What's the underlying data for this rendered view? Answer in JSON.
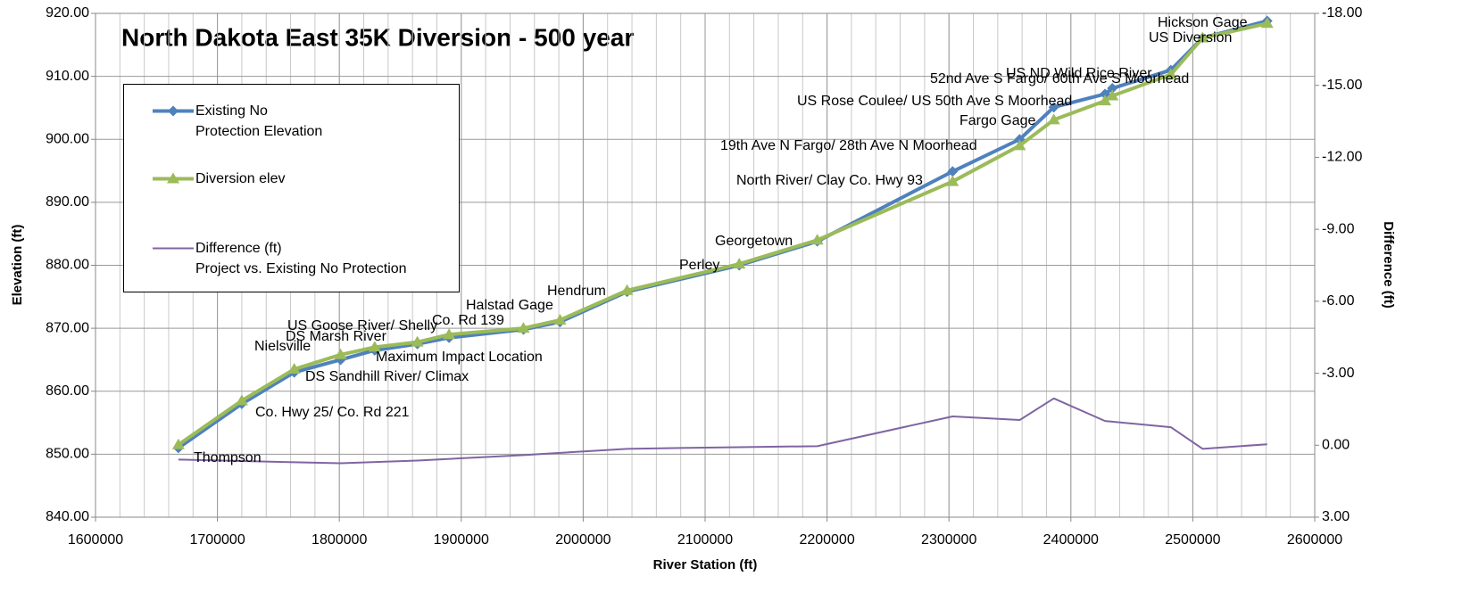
{
  "chart_data": {
    "type": "line",
    "title": "North Dakota East 35K Diversion  - 500 year",
    "x_label": "River Station (ft)",
    "y_label": "Elevation (ft)",
    "y2_label": "Difference (ft)",
    "x": [
      1668000,
      1720000,
      1763000,
      1801000,
      1829000,
      1864000,
      1890000,
      1951000,
      1981000,
      2036000,
      2128000,
      2192000,
      2303000,
      2358000,
      2386000,
      2428000,
      2434000,
      2482000,
      2508000,
      2561000
    ],
    "series": [
      {
        "name": "Existing No\nProtection Elevation",
        "color": "#4f81bd",
        "marker": "diamond",
        "values": [
          851,
          858,
          863,
          865,
          866.5,
          867.5,
          868.5,
          869.8,
          871,
          875.8,
          880,
          883.8,
          894.9,
          900,
          905.1,
          907.2,
          908.1,
          911,
          916.1,
          918.8
        ]
      },
      {
        "name": "Diversion elev",
        "color": "#9bbb59",
        "marker": "triangle",
        "values": [
          851.5,
          858.5,
          863.5,
          865.8,
          867,
          867.8,
          869,
          870,
          871.3,
          876,
          880.2,
          884,
          893.3,
          899,
          903.1,
          906.1,
          906.9,
          910.3,
          916.1,
          918.4
        ]
      },
      {
        "name": "Difference (ft)\n Project vs. Existing No Protection",
        "color": "#8064a2",
        "marker": "none",
        "axis": "y2",
        "x": [
          1668000,
          1763000,
          1801000,
          1864000,
          1951000,
          2036000,
          2128000,
          2192000,
          2303000,
          2358000,
          2386000,
          2428000,
          2482000,
          2508000,
          2561000
        ],
        "values": [
          0.6,
          0.71,
          0.75,
          0.64,
          0.41,
          0.15,
          0.08,
          0.04,
          -1.2,
          -1.05,
          -1.95,
          -1.01,
          -0.75,
          0.15,
          -0.04
        ]
      }
    ],
    "annotations": [
      "Hickson Gage",
      "US Diversion",
      "US ND Wild Rice River",
      "52nd Ave S Fargo/ 60th Ave S Moorhead",
      "US Rose Coulee/ US 50th Ave S Moorhead",
      "Fargo Gage",
      "19th Ave N Fargo/ 28th Ave N Moorhead",
      "North River/ Clay Co. Hwy 93",
      "Georgetown",
      "Perley",
      "Hendrum",
      "Halstad Gage",
      "Co. Rd 139",
      "US Goose River/ Shelly",
      "DS Marsh River",
      "Nielsville",
      "Maximum Impact Location",
      "DS Sandhill River/ Climax",
      "Co. Hwy 25/ Co. Rd 221",
      "Thompson"
    ],
    "xlim": [
      1600000,
      2600000
    ],
    "xticks": [
      1600000,
      1700000,
      1800000,
      1900000,
      2000000,
      2100000,
      2200000,
      2300000,
      2400000,
      2500000,
      2600000
    ],
    "ylim": [
      840,
      920
    ],
    "yticks": [
      {
        "value": 840,
        "label": "840.00"
      },
      {
        "value": 850,
        "label": "850.00"
      },
      {
        "value": 860,
        "label": "860.00"
      },
      {
        "value": 870,
        "label": "870.00"
      },
      {
        "value": 880,
        "label": "880.00"
      },
      {
        "value": 890,
        "label": "890.00"
      },
      {
        "value": 900,
        "label": "900.00"
      },
      {
        "value": 910,
        "label": "910.00"
      },
      {
        "value": 920,
        "label": "920.00"
      }
    ],
    "y2lim": [
      3,
      -18
    ],
    "y2ticks": [
      {
        "value": 3,
        "label": "3.00"
      },
      {
        "value": 0,
        "label": "0.00"
      },
      {
        "value": -3,
        "label": "-3.00"
      },
      {
        "value": -6,
        "label": "-6.00"
      },
      {
        "value": -9,
        "label": "-9.00"
      },
      {
        "value": -12,
        "label": "-12.00"
      },
      {
        "value": -15,
        "label": "-15.00"
      },
      {
        "value": -18,
        "label": "-18.00"
      }
    ],
    "grid": true
  }
}
